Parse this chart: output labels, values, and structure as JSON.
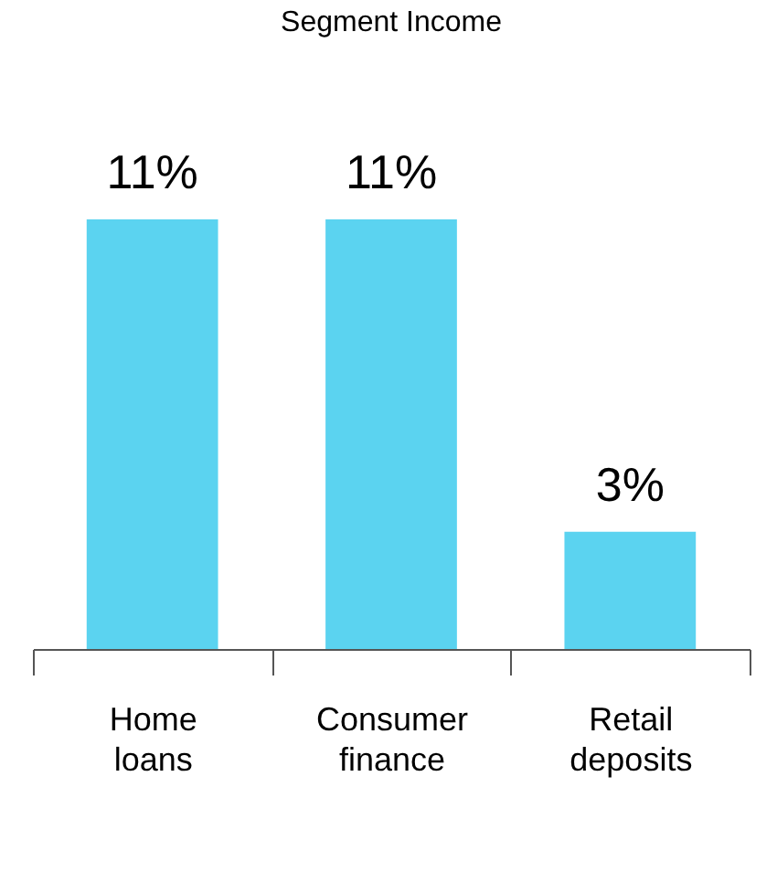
{
  "chart_data": {
    "type": "bar",
    "title": "Segment Income",
    "categories": [
      "Home loans",
      "Consumer finance",
      "Retail deposits"
    ],
    "values": [
      11,
      11,
      3
    ],
    "value_labels": [
      "11%",
      "11%",
      "3%"
    ],
    "color": "#5bd3f0"
  }
}
